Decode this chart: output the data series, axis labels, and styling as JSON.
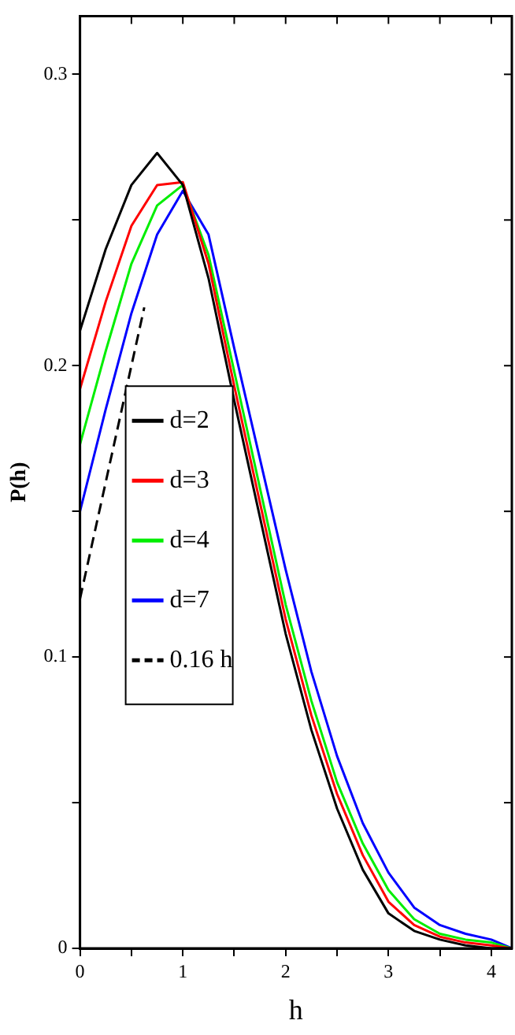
{
  "chart_data": {
    "type": "line",
    "xlabel": "h",
    "ylabel": "P(h)",
    "x": [
      0,
      0.25,
      0.5,
      0.75,
      1,
      1.25,
      1.5,
      1.75,
      2,
      2.25,
      2.5,
      2.75,
      3,
      3.25,
      3.5,
      3.75,
      4,
      4.2
    ],
    "series": [
      {
        "name": "d=2",
        "color": "#000000",
        "values": [
          0.212,
          0.24,
          0.262,
          0.273,
          0.262,
          0.23,
          0.188,
          0.148,
          0.108,
          0.075,
          0.048,
          0.027,
          0.012,
          0.006,
          0.003,
          0.001,
          0,
          0
        ]
      },
      {
        "name": "d=3",
        "color": "#ff0000",
        "values": [
          0.192,
          0.222,
          0.248,
          0.262,
          0.263,
          0.235,
          0.193,
          0.153,
          0.113,
          0.08,
          0.053,
          0.032,
          0.016,
          0.008,
          0.004,
          0.002,
          0.001,
          0
        ]
      },
      {
        "name": "d=4",
        "color": "#00ee00",
        "values": [
          0.173,
          0.205,
          0.235,
          0.255,
          0.262,
          0.238,
          0.198,
          0.158,
          0.118,
          0.085,
          0.057,
          0.036,
          0.02,
          0.01,
          0.005,
          0.003,
          0.002,
          0
        ]
      },
      {
        "name": "d=7",
        "color": "#0000ff",
        "values": [
          0.15,
          0.185,
          0.218,
          0.245,
          0.26,
          0.245,
          0.206,
          0.168,
          0.13,
          0.095,
          0.066,
          0.043,
          0.026,
          0.014,
          0.008,
          0.005,
          0.003,
          0
        ]
      },
      {
        "name": "0.16 h",
        "color": "#000000",
        "x": [
          0,
          0.625
        ],
        "values": [
          0.12,
          0.22
        ],
        "line_style": "dashed"
      }
    ],
    "xlim": [
      0,
      4.2
    ],
    "ylim": [
      0,
      0.32
    ],
    "xticks": [
      0,
      {
        "value": 0.5,
        "label": null
      },
      1,
      {
        "value": 1.5,
        "label": null
      },
      2,
      {
        "value": 2.5,
        "label": null
      },
      3,
      {
        "value": 3.5,
        "label": null
      },
      4
    ],
    "yticks": [
      0,
      {
        "value": 0.05,
        "label": null
      },
      0.1,
      {
        "value": 0.15,
        "label": null
      },
      0.2,
      {
        "value": 0.25,
        "label": null
      },
      0.3
    ],
    "legend": "left",
    "marker": "none",
    "grid": false
  }
}
